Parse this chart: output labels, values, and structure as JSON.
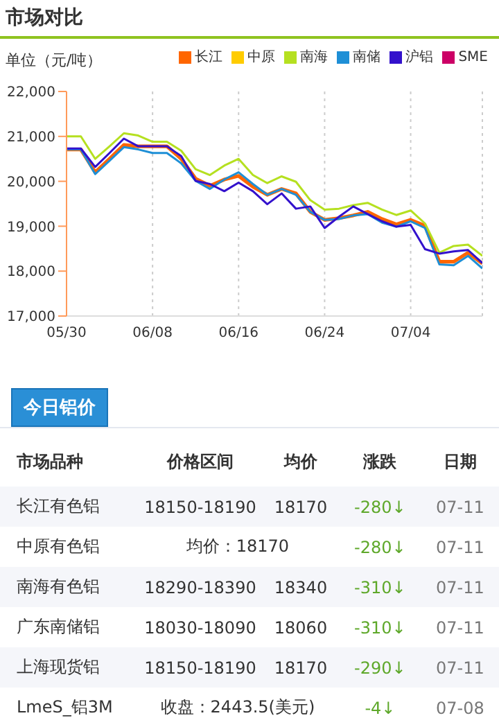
{
  "chart_data": [
    {
      "type": "line",
      "title": "市场对比",
      "ylabel": "单位（元/吨）",
      "categories": [
        "05/30",
        null,
        null,
        null,
        null,
        null,
        "06/08",
        null,
        null,
        null,
        null,
        null,
        "06/16",
        null,
        null,
        null,
        null,
        null,
        "06/24",
        null,
        null,
        null,
        null,
        null,
        "07/04",
        null,
        null,
        null,
        null,
        null
      ],
      "series": [
        {
          "name": "长江",
          "color": "#ff6600",
          "values": [
            20710,
            20710,
            20200,
            20500,
            20810,
            20780,
            20780,
            20780,
            20500,
            20060,
            19900,
            20040,
            20120,
            19880,
            19700,
            19830,
            19730,
            19320,
            19140,
            19180,
            19240,
            19320,
            19160,
            19040,
            19140,
            19010,
            18210,
            18210,
            18410,
            18170
          ]
        },
        {
          "name": "中原",
          "color": "#ffcc00",
          "values": [
            null,
            null,
            null,
            null,
            null,
            null,
            null,
            null,
            null,
            null,
            null,
            null,
            null,
            null,
            null,
            null,
            null,
            null,
            null,
            null,
            null,
            null,
            null,
            null,
            null,
            null,
            null,
            null,
            null,
            null
          ]
        },
        {
          "name": "南海",
          "color": "#b5e020",
          "values": [
            21000,
            21000,
            20500,
            20780,
            21070,
            21020,
            20880,
            20880,
            20680,
            20270,
            20140,
            20350,
            20500,
            20140,
            19960,
            20110,
            19990,
            19580,
            19370,
            19390,
            19470,
            19520,
            19370,
            19250,
            19350,
            19060,
            18410,
            18560,
            18590,
            18340
          ]
        },
        {
          "name": "南储",
          "color": "#1e8fd6",
          "values": [
            20710,
            20710,
            20160,
            20460,
            20760,
            20710,
            20630,
            20630,
            20400,
            20010,
            19830,
            20040,
            20200,
            19940,
            19700,
            19830,
            19700,
            19320,
            19140,
            19160,
            19240,
            19270,
            19080,
            18990,
            19110,
            18960,
            18150,
            18130,
            18340,
            18060
          ]
        },
        {
          "name": "沪铝",
          "color": "#3311cc",
          "values": [
            20730,
            20730,
            20320,
            20630,
            20950,
            20780,
            20780,
            20780,
            20560,
            20010,
            19940,
            19780,
            19970,
            19780,
            19490,
            19730,
            19390,
            19440,
            18960,
            19210,
            19440,
            19270,
            19110,
            18990,
            19030,
            18490,
            18390,
            18440,
            18470,
            18180
          ]
        },
        {
          "name": "SME",
          "color": "#cc0066",
          "values": [
            null,
            null,
            null,
            null,
            null,
            null,
            null,
            null,
            null,
            null,
            null,
            null,
            null,
            null,
            null,
            null,
            null,
            null,
            null,
            null,
            null,
            null,
            null,
            null,
            null,
            null,
            null,
            null,
            null,
            null
          ]
        }
      ],
      "ylim": [
        17000,
        22000
      ],
      "yticks": [
        {
          "value": 17000,
          "label": "17,000"
        },
        {
          "value": 18000,
          "label": "18,000"
        },
        {
          "value": 19000,
          "label": "19,000"
        },
        {
          "value": 20000,
          "label": "20,000"
        },
        {
          "value": 21000,
          "label": "21,000"
        },
        {
          "value": 22000,
          "label": "22,000"
        }
      ],
      "grid": "x",
      "legend": "top right",
      "marker": "none",
      "line_style": "solid"
    },
    {
      "type": "other",
      "title": "今日铝价",
      "categories": [
        "市场品种",
        "价格区间",
        "均价",
        "涨跌",
        "日期"
      ],
      "annotations": [
        "长江有色铝",
        "18150-18190",
        "18170",
        "-280↓",
        "07-11",
        "中原有色铝",
        "均价：18170",
        null,
        "-280↓",
        "07-11",
        "南海有色铝",
        "18290-18390",
        "18340",
        "-310↓",
        "07-11",
        "广东南储铝",
        "18030-18090",
        "18060",
        "-310↓",
        "07-11",
        "上海现货铝",
        "18150-18190",
        "18170",
        "-290↓",
        "07-11",
        "LmeS_铝3M",
        "收盘：2443.5(美元)",
        null,
        "-4↓",
        "07-08"
      ]
    }
  ]
}
